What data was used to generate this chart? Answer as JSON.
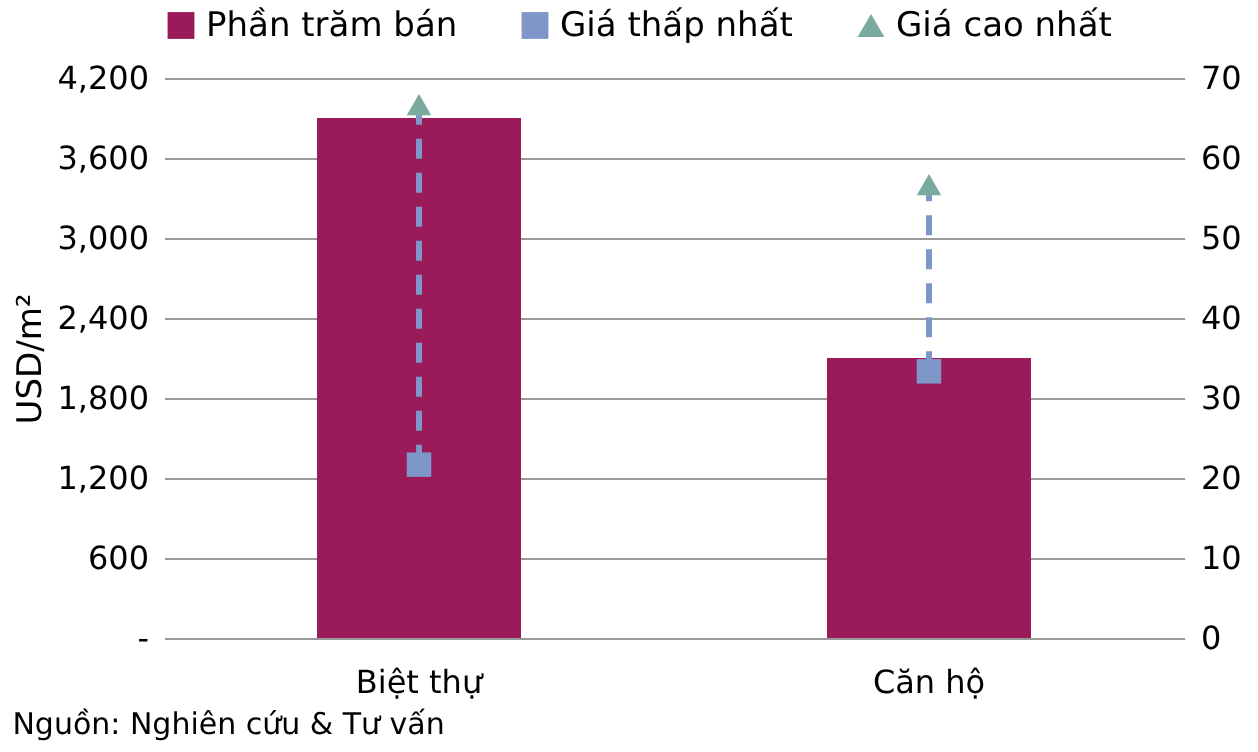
{
  "chart_data": {
    "type": "bar",
    "ylabel": "USD/m²",
    "categories": [
      "Biệt thự",
      "Căn hộ"
    ],
    "series": [
      {
        "name": "Phần trăm bán",
        "type": "bar",
        "color": "#9b1b5a",
        "axis": "y2",
        "values": [
          65,
          35
        ]
      },
      {
        "name": "Giá thấp nhất",
        "type": "scatter",
        "marker": "square",
        "line_style": "dashed",
        "color": "#7f96c8",
        "values": [
          1300,
          2000
        ]
      },
      {
        "name": "Giá cao nhất",
        "type": "scatter",
        "marker": "triangle",
        "color": "#7aaa9f",
        "values": [
          4000,
          3400
        ]
      }
    ],
    "ylim": [
      0,
      4200
    ],
    "yticks": [
      {
        "value": 0,
        "label": "-"
      },
      600,
      {
        "value": 1200,
        "label": "1,200"
      },
      {
        "value": 1800,
        "label": "1,800"
      },
      {
        "value": 2400,
        "label": "2,400"
      },
      {
        "value": 3000,
        "label": "3,000"
      },
      {
        "value": 3600,
        "label": "3,600"
      },
      {
        "value": 4200,
        "label": "4,200"
      }
    ],
    "y2lim": [
      0,
      70
    ],
    "y2ticks": [
      0,
      10,
      20,
      30,
      40,
      50,
      60,
      70
    ],
    "grid": "y",
    "legend": "top",
    "annotations": [
      "Nguồn: Nghiên cứu & Tư vấn"
    ]
  }
}
